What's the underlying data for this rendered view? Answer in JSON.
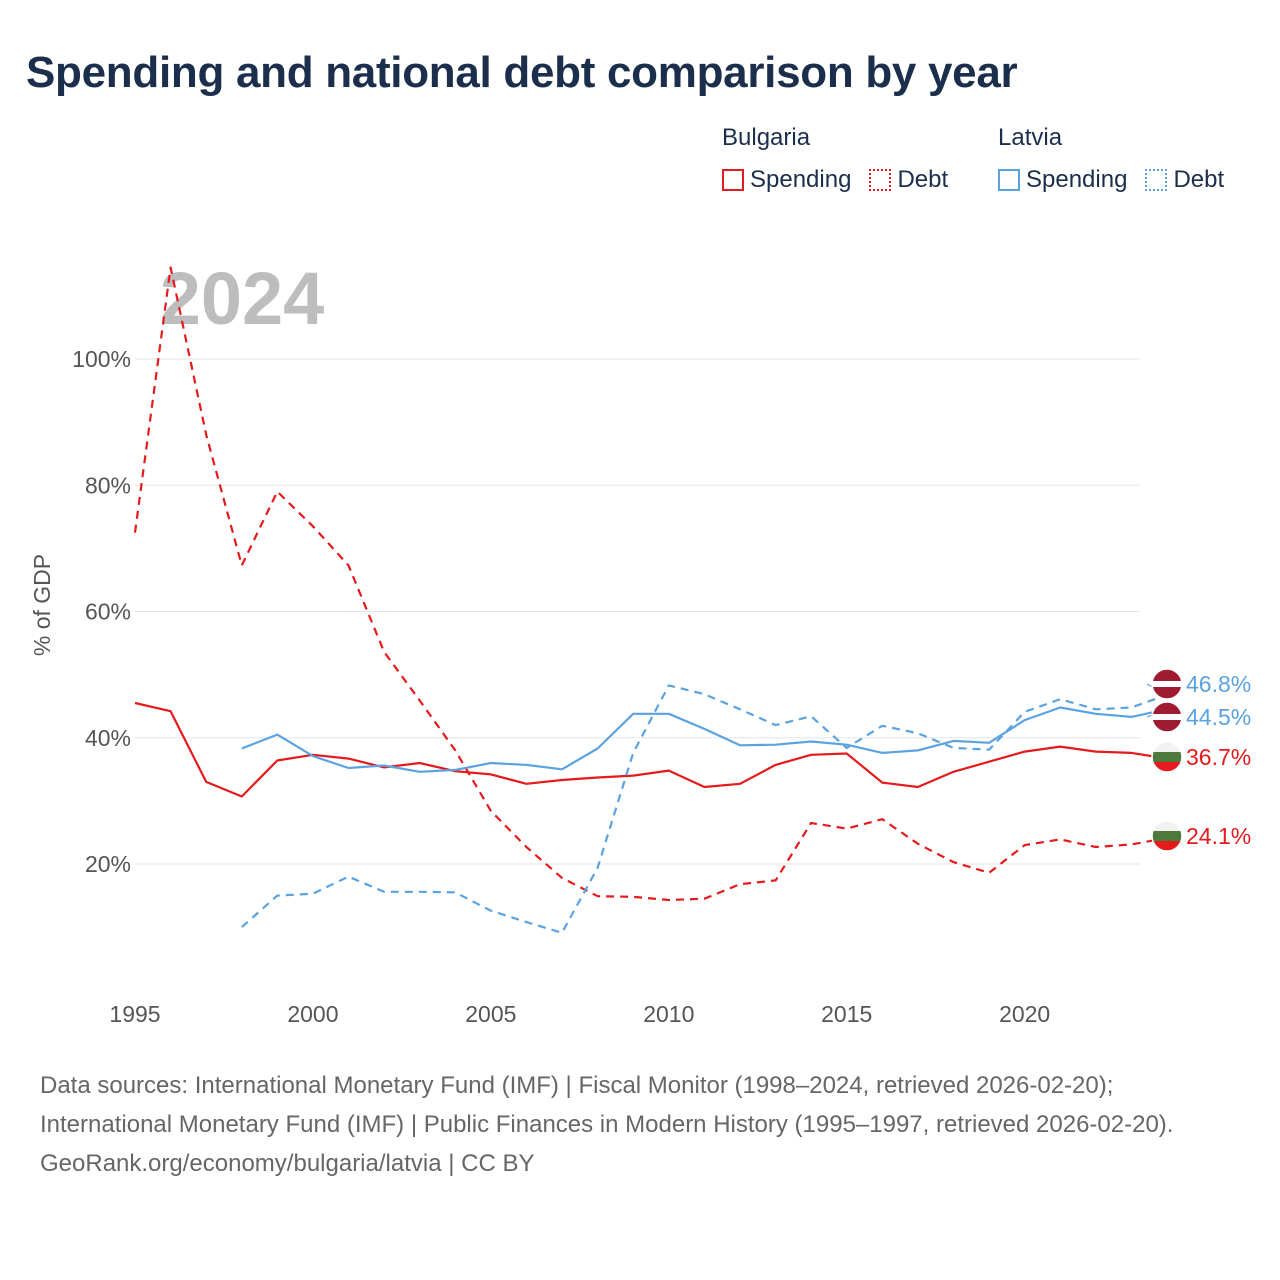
{
  "title": "Spending and national debt comparison by year",
  "legend": {
    "groups": [
      {
        "name": "Bulgaria",
        "color": "#e41a1c",
        "items": [
          {
            "label": "Spending",
            "style": "solid"
          },
          {
            "label": "Debt",
            "style": "dotted"
          }
        ]
      },
      {
        "name": "Latvia",
        "color": "#5ba3e0",
        "items": [
          {
            "label": "Spending",
            "style": "solid"
          },
          {
            "label": "Debt",
            "style": "dotted"
          }
        ]
      }
    ]
  },
  "chart_data": {
    "type": "line",
    "title": "Spending and national debt comparison by year",
    "watermark_year": "2024",
    "ylabel": "% of GDP",
    "xlabel": "",
    "xlim": [
      1995,
      2024
    ],
    "ylim": [
      0,
      110
    ],
    "xticks": [
      1995,
      2000,
      2005,
      2010,
      2015,
      2020
    ],
    "yticks": [
      20,
      40,
      60,
      80,
      100
    ],
    "ytick_labels": [
      "20%",
      "40%",
      "60%",
      "80%",
      "100%"
    ],
    "grid": true,
    "series": [
      {
        "name": "Bulgaria Spending",
        "country": "Bulgaria",
        "metric": "Spending",
        "color": "#e41a1c",
        "dash": "solid",
        "end_label": "36.7%",
        "x": [
          1995,
          1996,
          1997,
          1998,
          1999,
          2000,
          2001,
          2002,
          2003,
          2004,
          2005,
          2006,
          2007,
          2008,
          2009,
          2010,
          2011,
          2012,
          2013,
          2014,
          2015,
          2016,
          2017,
          2018,
          2019,
          2020,
          2021,
          2022,
          2023,
          2024
        ],
        "values": [
          45.5,
          44.2,
          33.0,
          30.7,
          36.4,
          37.3,
          36.7,
          35.3,
          36.0,
          34.7,
          34.2,
          32.7,
          33.3,
          33.7,
          34.0,
          34.8,
          32.2,
          32.7,
          35.7,
          37.3,
          37.5,
          32.9,
          32.2,
          34.6,
          36.2,
          37.8,
          38.6,
          37.8,
          37.6,
          36.7
        ]
      },
      {
        "name": "Bulgaria Debt",
        "country": "Bulgaria",
        "metric": "Debt",
        "color": "#e41a1c",
        "dash": "dashed",
        "end_label": "24.1%",
        "x": [
          1995,
          1996,
          1997,
          1998,
          1999,
          2000,
          2001,
          2002,
          2003,
          2004,
          2005,
          2006,
          2007,
          2008,
          2009,
          2010,
          2011,
          2012,
          2013,
          2014,
          2015,
          2016,
          2017,
          2018,
          2019,
          2020,
          2021,
          2022,
          2023,
          2024
        ],
        "values": [
          72.5,
          114.5,
          88.0,
          67.3,
          79.0,
          73.5,
          67.3,
          53.6,
          45.9,
          38.0,
          28.4,
          22.7,
          17.8,
          14.9,
          14.8,
          14.3,
          14.5,
          16.8,
          17.4,
          26.5,
          25.6,
          27.1,
          23.2,
          20.3,
          18.6,
          23.0,
          23.9,
          22.7,
          23.1,
          24.1
        ]
      },
      {
        "name": "Latvia Spending",
        "country": "Latvia",
        "metric": "Spending",
        "color": "#5ba3e0",
        "dash": "solid",
        "end_label": "44.5%",
        "x": [
          1998,
          1999,
          2000,
          2001,
          2002,
          2003,
          2004,
          2005,
          2006,
          2007,
          2008,
          2009,
          2010,
          2011,
          2012,
          2013,
          2014,
          2015,
          2016,
          2017,
          2018,
          2019,
          2020,
          2021,
          2022,
          2023,
          2024
        ],
        "values": [
          38.3,
          40.5,
          37.1,
          35.2,
          35.6,
          34.6,
          34.9,
          36.0,
          35.7,
          35.0,
          38.3,
          43.8,
          43.8,
          41.4,
          38.8,
          38.9,
          39.4,
          38.9,
          37.6,
          38.0,
          39.5,
          39.2,
          42.8,
          44.8,
          43.8,
          43.3,
          44.5
        ]
      },
      {
        "name": "Latvia Debt",
        "country": "Latvia",
        "metric": "Debt",
        "color": "#5ba3e0",
        "dash": "dashed",
        "end_label": "46.8%",
        "x": [
          1998,
          1999,
          2000,
          2001,
          2002,
          2003,
          2004,
          2005,
          2006,
          2007,
          2008,
          2009,
          2010,
          2011,
          2012,
          2013,
          2014,
          2015,
          2016,
          2017,
          2018,
          2019,
          2020,
          2021,
          2022,
          2023,
          2024
        ],
        "values": [
          10.0,
          15.0,
          15.3,
          18.0,
          15.6,
          15.6,
          15.5,
          12.6,
          10.8,
          9.1,
          19.4,
          37.6,
          48.3,
          46.9,
          44.5,
          42.0,
          43.4,
          38.4,
          41.9,
          40.7,
          38.4,
          38.1,
          44.1,
          46.1,
          44.5,
          44.8,
          46.8
        ]
      }
    ]
  },
  "footer": {
    "sources": "Data sources: International Monetary Fund (IMF) | Fiscal Monitor (1998–2024, retrieved 2026-02-20); International Monetary Fund (IMF) | Public Finances in Modern History (1995–1997, retrieved 2026-02-20).",
    "credit": "GeoRank.org/economy/bulgaria/latvia | CC BY"
  }
}
